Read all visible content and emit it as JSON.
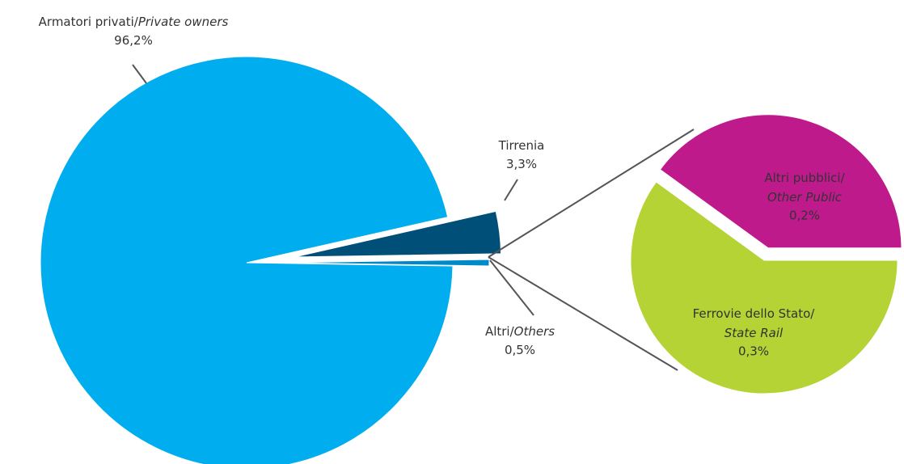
{
  "chart_data": [
    {
      "type": "pie",
      "categories": [
        "Armatori privati/Private owners",
        "Tirrenia",
        "Altri/Others"
      ],
      "values": [
        96.2,
        3.3,
        0.5
      ],
      "value_labels": [
        "96,2%",
        "3,3%",
        "0,5%"
      ],
      "colors": [
        "#00adef",
        "#004f79",
        "#0089c8"
      ]
    },
    {
      "type": "pie",
      "categories": [
        "Altri pubblici/Other Public",
        "Ferrovie dello Stato/State Rail"
      ],
      "values": [
        0.2,
        0.3
      ],
      "value_labels": [
        "0,2%",
        "0,3%"
      ],
      "colors": [
        "#bf1a8c",
        "#b5d334"
      ]
    }
  ]
}
